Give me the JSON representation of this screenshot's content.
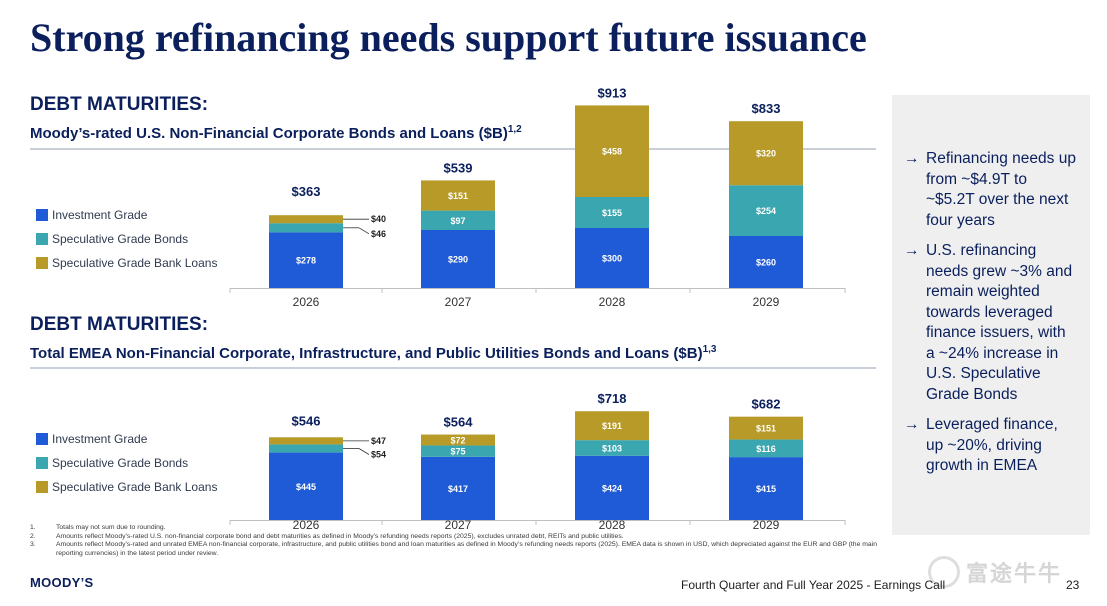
{
  "title": "Strong refinancing needs support future issuance",
  "colors": {
    "investment_grade": "#1f5bd6",
    "spec_grade_bonds": "#3aa6b0",
    "spec_grade_bank_loans": "#b79a28",
    "navy": "#0a1f5c"
  },
  "legend_labels": [
    "Investment Grade",
    "Speculative Grade Bonds",
    "Speculative Grade Bank Loans"
  ],
  "chart_data": [
    {
      "type": "bar",
      "stacked": true,
      "heading": "DEBT MATURITIES:",
      "title": "Moody’s-rated U.S. Non-Financial Corporate Bonds and Loans ($B)",
      "footnote_refs": "1,2",
      "categories": [
        "2026",
        "2027",
        "2028",
        "2029"
      ],
      "series": [
        {
          "name": "Investment Grade",
          "values": [
            278,
            290,
            300,
            260
          ],
          "labels": [
            "$278",
            "$290",
            "$300",
            "$260"
          ]
        },
        {
          "name": "Speculative Grade Bonds",
          "values": [
            46,
            97,
            155,
            254
          ],
          "labels": [
            "$46",
            "$97",
            "$155",
            "$254"
          ]
        },
        {
          "name": "Speculative Grade Bank Loans",
          "values": [
            40,
            151,
            458,
            320
          ],
          "labels": [
            "$40",
            "$151",
            "$458",
            "$320"
          ]
        }
      ],
      "totals": [
        "$363",
        "$539",
        "$913",
        "$833"
      ],
      "legend_position": "left",
      "grid": false
    },
    {
      "type": "bar",
      "stacked": true,
      "heading": "DEBT MATURITIES:",
      "title": "Total EMEA Non-Financial Corporate, Infrastructure, and Public Utilities Bonds and Loans ($B)",
      "footnote_refs": "1,3",
      "categories": [
        "2026",
        "2027",
        "2028",
        "2029"
      ],
      "series": [
        {
          "name": "Investment Grade",
          "values": [
            445,
            417,
            424,
            415
          ],
          "labels": [
            "$445",
            "$417",
            "$424",
            "$415"
          ]
        },
        {
          "name": "Speculative Grade Bonds",
          "values": [
            54,
            75,
            103,
            116
          ],
          "labels": [
            "$54",
            "$75",
            "$103",
            "$116"
          ]
        },
        {
          "name": "Speculative Grade Bank Loans",
          "values": [
            47,
            72,
            191,
            151
          ],
          "labels": [
            "$47",
            "$72",
            "$191",
            "$151"
          ]
        }
      ],
      "totals": [
        "$546",
        "$564",
        "$718",
        "$682"
      ],
      "legend_position": "left",
      "grid": false
    }
  ],
  "sidebar": {
    "arrow": "→",
    "bullets": [
      "Refinancing needs up from ~$4.9T to ~$5.2T over the next four years",
      "U.S. refinancing needs grew ~3% and remain weighted towards leveraged finance issuers, with a ~24% increase in U.S. Speculative Grade Bonds",
      "Leveraged finance, up ~20%, driving growth in EMEA"
    ]
  },
  "footnotes": [
    {
      "num": "1.",
      "text": "Totals may not sum due to rounding."
    },
    {
      "num": "2.",
      "text": "Amounts reflect Moody’s-rated U.S. non-financial corporate bond and debt maturities as defined in Moody’s refunding needs reports (2025), excludes unrated debt, REITs and public utilities."
    },
    {
      "num": "3.",
      "text": "Amounts reflect Moody’s-rated and unrated EMEA non-financial corporate, infrastructure, and public utilities bond and loan maturities as defined in Moody’s refunding needs reports (2025). EMEA data is shown in USD, which depreciated against the EUR and GBP (the main reporting currencies) in the latest period under review."
    }
  ],
  "footer": {
    "logo": "MOODY’S",
    "text": "Fourth Quarter and Full Year 2025 - Earnings Call",
    "page": "23"
  },
  "watermark": "富途牛牛"
}
